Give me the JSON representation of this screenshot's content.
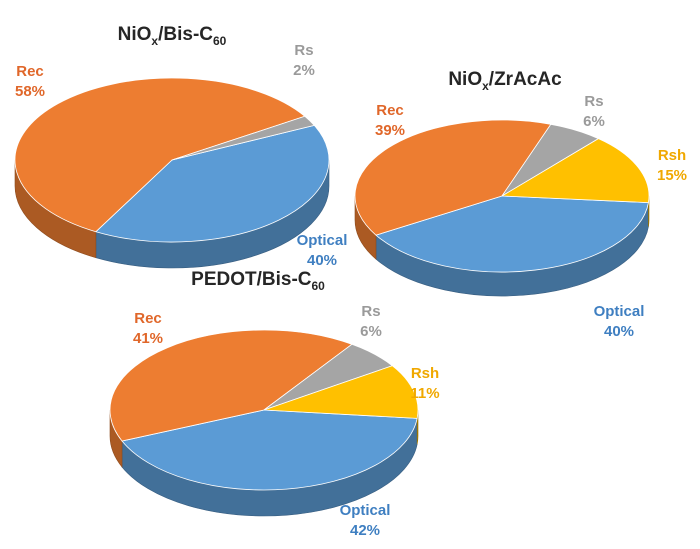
{
  "chart_data": [
    {
      "type": "pie",
      "title": {
        "base": "NiO",
        "sub1": "x",
        "mid": "/Bis-C",
        "sub2": "60"
      },
      "slices": [
        {
          "name": "Optical",
          "value": 40,
          "label_name": "Optical",
          "label_value": "40%",
          "color": "#5b9bd5"
        },
        {
          "name": "Rec",
          "value": 58,
          "label_name": "Rec",
          "label_value": "58%",
          "color": "#ed7d31"
        },
        {
          "name": "Rs",
          "value": 2,
          "label_name": "Rs",
          "label_value": "2%",
          "color": "#a5a5a5"
        }
      ]
    },
    {
      "type": "pie",
      "title": {
        "base": "NiO",
        "sub1": "x",
        "mid": "/ZrAcAc",
        "sub2": ""
      },
      "slices": [
        {
          "name": "Optical",
          "value": 40,
          "label_name": "Optical",
          "label_value": "40%",
          "color": "#5b9bd5"
        },
        {
          "name": "Rec",
          "value": 39,
          "label_name": "Rec",
          "label_value": "39%",
          "color": "#ed7d31"
        },
        {
          "name": "Rs",
          "value": 6,
          "label_name": "Rs",
          "label_value": "6%",
          "color": "#a5a5a5"
        },
        {
          "name": "Rsh",
          "value": 15,
          "label_name": "Rsh",
          "label_value": "15%",
          "color": "#ffc000"
        }
      ]
    },
    {
      "type": "pie",
      "title": {
        "base": "PEDOT/Bis-C",
        "sub1": "",
        "mid": "",
        "sub2": "60"
      },
      "slices": [
        {
          "name": "Optical",
          "value": 42,
          "label_name": "Optical",
          "label_value": "42%",
          "color": "#5b9bd5"
        },
        {
          "name": "Rec",
          "value": 41,
          "label_name": "Rec",
          "label_value": "41%",
          "color": "#ed7d31"
        },
        {
          "name": "Rs",
          "value": 6,
          "label_name": "Rs",
          "label_value": "6%",
          "color": "#a5a5a5"
        },
        {
          "name": "Rsh",
          "value": 11,
          "label_name": "Rsh",
          "label_value": "11%",
          "color": "#ffc000"
        }
      ]
    }
  ]
}
